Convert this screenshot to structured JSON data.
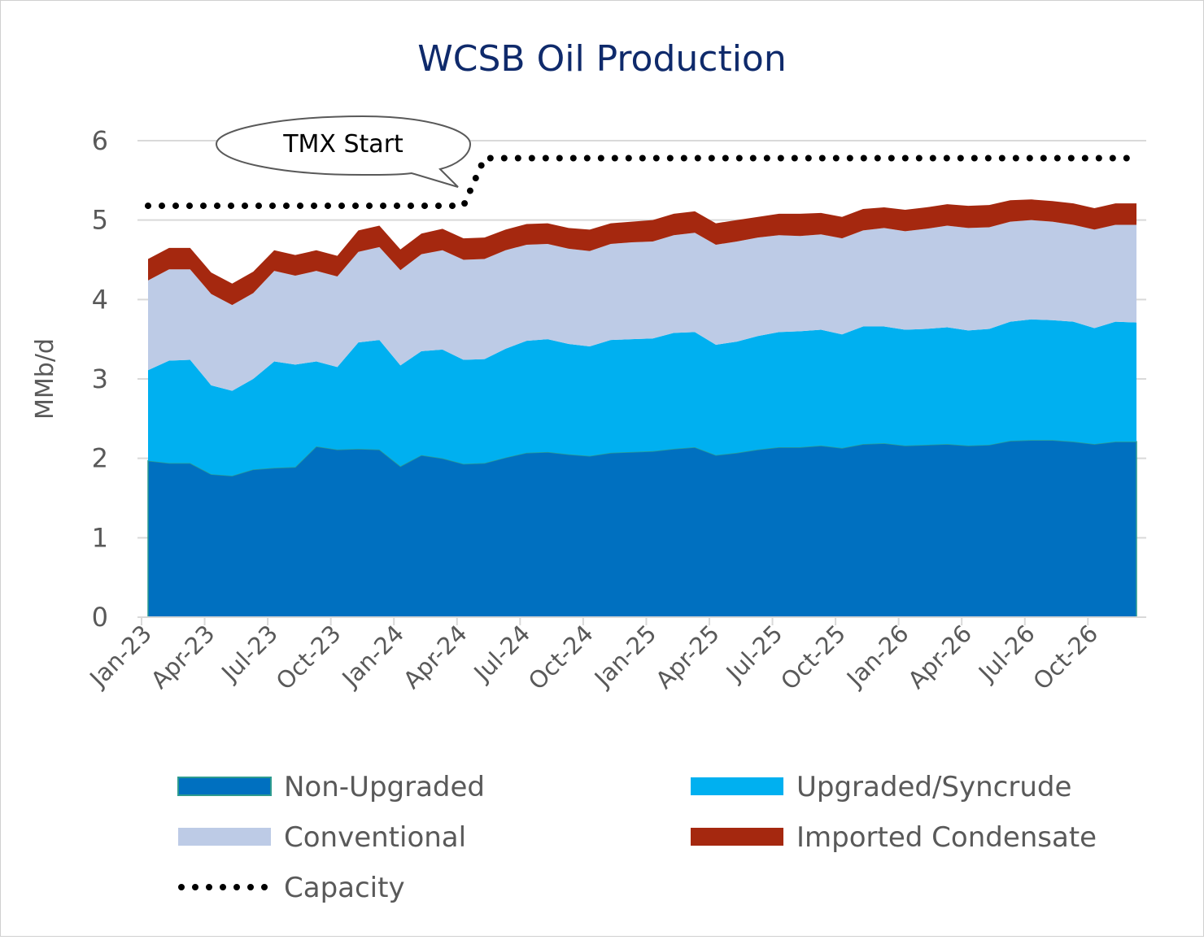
{
  "chart_data": {
    "type": "area",
    "title": "WCSB Oil Production",
    "ylabel": "MMb/d",
    "xlabel": "",
    "ylim": [
      0,
      6
    ],
    "yticks": [
      0,
      1,
      2,
      3,
      4,
      5,
      6
    ],
    "grid": true,
    "legend_position": "bottom",
    "x": [
      "Jan-23",
      "Feb-23",
      "Mar-23",
      "Apr-23",
      "May-23",
      "Jun-23",
      "Jul-23",
      "Aug-23",
      "Sep-23",
      "Oct-23",
      "Nov-23",
      "Dec-23",
      "Jan-24",
      "Feb-24",
      "Mar-24",
      "Apr-24",
      "May-24",
      "Jun-24",
      "Jul-24",
      "Aug-24",
      "Sep-24",
      "Oct-24",
      "Nov-24",
      "Dec-24",
      "Jan-25",
      "Feb-25",
      "Mar-25",
      "Apr-25",
      "May-25",
      "Jun-25",
      "Jul-25",
      "Aug-25",
      "Sep-25",
      "Oct-25",
      "Nov-25",
      "Dec-25",
      "Jan-26",
      "Feb-26",
      "Mar-26",
      "Apr-26",
      "May-26",
      "Jun-26",
      "Jul-26",
      "Aug-26",
      "Sep-26",
      "Oct-26",
      "Nov-26",
      "Dec-26"
    ],
    "x_tick_labels": [
      "Jan-23",
      "Apr-23",
      "Jul-23",
      "Oct-23",
      "Jan-24",
      "Apr-24",
      "Jul-24",
      "Oct-24",
      "Jan-25",
      "Apr-25",
      "Jul-25",
      "Oct-25",
      "Jan-26",
      "Apr-26",
      "Jul-26",
      "Oct-26"
    ],
    "stacked": true,
    "series": [
      {
        "name": "Non-Upgraded",
        "color": "#0070c0",
        "values": [
          1.97,
          1.94,
          1.94,
          1.8,
          1.78,
          1.86,
          1.88,
          1.89,
          2.15,
          2.11,
          2.12,
          2.11,
          1.9,
          2.04,
          2.0,
          1.93,
          1.94,
          2.01,
          2.07,
          2.08,
          2.05,
          2.03,
          2.07,
          2.08,
          2.09,
          2.12,
          2.14,
          2.04,
          2.07,
          2.11,
          2.14,
          2.14,
          2.16,
          2.13,
          2.18,
          2.19,
          2.16,
          2.17,
          2.18,
          2.16,
          2.17,
          2.22,
          2.23,
          2.23,
          2.21,
          2.18,
          2.21,
          2.21
        ]
      },
      {
        "name": "Upgraded/Syncrude",
        "color": "#00b0f0",
        "values": [
          1.14,
          1.29,
          1.3,
          1.12,
          1.07,
          1.14,
          1.34,
          1.29,
          1.07,
          1.04,
          1.34,
          1.38,
          1.27,
          1.31,
          1.37,
          1.31,
          1.31,
          1.37,
          1.41,
          1.42,
          1.39,
          1.38,
          1.42,
          1.42,
          1.42,
          1.46,
          1.45,
          1.39,
          1.4,
          1.43,
          1.45,
          1.46,
          1.46,
          1.43,
          1.48,
          1.47,
          1.46,
          1.46,
          1.47,
          1.45,
          1.46,
          1.5,
          1.52,
          1.51,
          1.51,
          1.46,
          1.51,
          1.5
        ]
      },
      {
        "name": "Conventional",
        "color": "#bdcbe6",
        "values": [
          1.13,
          1.15,
          1.14,
          1.15,
          1.08,
          1.08,
          1.14,
          1.12,
          1.14,
          1.14,
          1.14,
          1.17,
          1.2,
          1.22,
          1.25,
          1.26,
          1.26,
          1.24,
          1.21,
          1.2,
          1.2,
          1.2,
          1.21,
          1.22,
          1.22,
          1.23,
          1.25,
          1.26,
          1.26,
          1.24,
          1.22,
          1.2,
          1.2,
          1.21,
          1.21,
          1.24,
          1.24,
          1.26,
          1.28,
          1.29,
          1.28,
          1.26,
          1.25,
          1.24,
          1.22,
          1.24,
          1.22,
          1.23
        ]
      },
      {
        "name": "Imported Condensate",
        "color": "#a5280f",
        "values": [
          0.27,
          0.27,
          0.27,
          0.27,
          0.27,
          0.27,
          0.26,
          0.26,
          0.26,
          0.26,
          0.27,
          0.27,
          0.26,
          0.26,
          0.27,
          0.27,
          0.27,
          0.26,
          0.26,
          0.26,
          0.26,
          0.27,
          0.26,
          0.26,
          0.27,
          0.27,
          0.27,
          0.27,
          0.27,
          0.26,
          0.27,
          0.28,
          0.27,
          0.27,
          0.27,
          0.26,
          0.27,
          0.27,
          0.27,
          0.28,
          0.28,
          0.27,
          0.26,
          0.26,
          0.27,
          0.27,
          0.27,
          0.27
        ]
      }
    ],
    "capacity": {
      "name": "Capacity",
      "style": "dotted",
      "color": "#000000",
      "values": [
        5.18,
        5.18,
        5.18,
        5.18,
        5.18,
        5.18,
        5.18,
        5.18,
        5.18,
        5.18,
        5.18,
        5.18,
        5.18,
        5.18,
        5.18,
        5.18,
        5.78,
        5.78,
        5.78,
        5.78,
        5.78,
        5.78,
        5.78,
        5.78,
        5.78,
        5.78,
        5.78,
        5.78,
        5.78,
        5.78,
        5.78,
        5.78,
        5.78,
        5.78,
        5.78,
        5.78,
        5.78,
        5.78,
        5.78,
        5.78,
        5.78,
        5.78,
        5.78,
        5.78,
        5.78,
        5.78,
        5.78,
        5.78
      ]
    },
    "annotations": [
      {
        "text": "TMX Start",
        "at": "May-24"
      }
    ],
    "legend": [
      "Non-Upgraded",
      "Upgraded/Syncrude",
      "Conventional",
      "Imported Condensate",
      "Capacity"
    ]
  }
}
